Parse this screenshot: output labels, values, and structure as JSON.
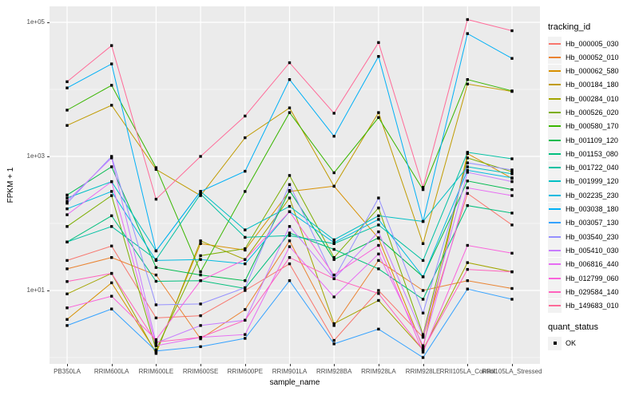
{
  "figure": {
    "x_axis_title": "sample_name",
    "y_axis_title": "FPKM + 1",
    "y_tick_labels": [
      "1e+05",
      "1e+03",
      "1e+01"
    ],
    "legend_title": "tracking_id",
    "quant_legend_title": "quant_status",
    "quant_items": [
      "OK"
    ]
  },
  "colors": {
    "panel_background": "#EBEBEB",
    "grid_major": "#FFFFFF",
    "grid_minor": "#FFFFFF",
    "point": "#000000",
    "axis_text": "#4D4D4D",
    "legend_key_background": "#F2F2F2"
  },
  "chart_data": {
    "type": "line",
    "title": "",
    "xlabel": "sample_name",
    "ylabel": "FPKM + 1",
    "y_scale": "log10",
    "ylim": [
      0.8,
      150000
    ],
    "y_major_ticks": [
      100000,
      1000,
      10
    ],
    "y_minor_ticks": [
      10000,
      100,
      1
    ],
    "grid": true,
    "legend_position": "right",
    "point_shape": "filled-square",
    "quant_status_all": "OK",
    "categories": [
      "PB350LA",
      "RRIM600LA",
      "RRIM600LE",
      "RRIM600SE",
      "RRIM600PE",
      "RRIM901LA",
      "RRIM928BA",
      "RRIM928LA",
      "RRIM928LE",
      "RRII105LA_Control",
      "RRII105LA_Stressed"
    ],
    "series": [
      {
        "name": "Hb_000005_030",
        "color": "#F8766D",
        "values": [
          28,
          46,
          3.9,
          4.2,
          10,
          25,
          1.8,
          10,
          2.0,
          280,
          95
        ]
      },
      {
        "name": "Hb_000052_010",
        "color": "#EA8331",
        "values": [
          21,
          31,
          17,
          1.9,
          5.2,
          55,
          3.0,
          28,
          10,
          14,
          10.7
        ]
      },
      {
        "name": "Hb_000062_580",
        "color": "#D89000",
        "values": [
          3.7,
          13,
          1.2,
          50,
          40,
          300,
          360,
          60,
          1.4,
          1100,
          470
        ]
      },
      {
        "name": "Hb_000184_180",
        "color": "#C09B00",
        "values": [
          2900,
          5800,
          640,
          260,
          1900,
          5300,
          358,
          4500,
          50,
          12000,
          9300
        ]
      },
      {
        "name": "Hb_000284_010",
        "color": "#A3A500",
        "values": [
          8.9,
          18,
          1.15,
          55,
          29,
          240,
          3.2,
          7.1,
          1.3,
          26,
          19
        ]
      },
      {
        "name": "Hb_000526_020",
        "color": "#7CAE00",
        "values": [
          90,
          260,
          1.3,
          33,
          42,
          520,
          31,
          170,
          2.2,
          950,
          590
        ]
      },
      {
        "name": "Hb_000580_170",
        "color": "#39B600",
        "values": [
          4900,
          11500,
          680,
          19,
          300,
          4500,
          570,
          3800,
          320,
          14000,
          9500
        ]
      },
      {
        "name": "Hb_001109_120",
        "color": "#00BB4E",
        "values": [
          265,
          700,
          22,
          17,
          14,
          310,
          29,
          61,
          16,
          430,
          320
        ]
      },
      {
        "name": "Hb_001153_080",
        "color": "#00BF7D",
        "values": [
          53,
          130,
          13.7,
          14,
          10.7,
          72,
          41,
          21,
          7.4,
          185,
          143
        ]
      },
      {
        "name": "Hb_001722_040",
        "color": "#00C1A3",
        "values": [
          53,
          90,
          29,
          275,
          62,
          66,
          50,
          95,
          28,
          1150,
          920
        ]
      },
      {
        "name": "Hb_001999_120",
        "color": "#00BFC4",
        "values": [
          240,
          420,
          39,
          300,
          80,
          180,
          57,
          130,
          107,
          700,
          550
        ]
      },
      {
        "name": "Hb_002235_230",
        "color": "#00BAE0",
        "values": [
          165,
          300,
          28,
          29,
          25,
          150,
          52,
          115,
          16,
          620,
          480
        ]
      },
      {
        "name": "Hb_003038_180",
        "color": "#00B0F6",
        "values": [
          10500,
          24000,
          39,
          300,
          600,
          14000,
          2000,
          31000,
          107,
          68000,
          29000
        ]
      },
      {
        "name": "Hb_003057_130",
        "color": "#35A2FF",
        "values": [
          3.0,
          5.3,
          1.25,
          1.45,
          1.93,
          14,
          1.6,
          2.65,
          1.0,
          10.5,
          7.4
        ]
      },
      {
        "name": "Hb_003540_230",
        "color": "#9590FF",
        "values": [
          200,
          1000,
          6.1,
          6.3,
          11,
          380,
          15,
          240,
          4.6,
          800,
          630
        ]
      },
      {
        "name": "Hb_005410_030",
        "color": "#C77CFF",
        "values": [
          215,
          950,
          1.65,
          3.0,
          3.6,
          90,
          15,
          75,
          2.1,
          580,
          420
        ]
      },
      {
        "name": "Hb_006816_440",
        "color": "#E76BF3",
        "values": [
          135,
          420,
          1.5,
          2.0,
          2.2,
          45,
          8,
          35,
          1.5,
          340,
          260
        ]
      },
      {
        "name": "Hb_012799_060",
        "color": "#FA62DB",
        "values": [
          5.5,
          8.2,
          1.85,
          14,
          29,
          150,
          17,
          47,
          1.2,
          47,
          36
        ]
      },
      {
        "name": "Hb_029584_140",
        "color": "#FF62BC",
        "values": [
          13.6,
          18,
          1.7,
          2.0,
          3.6,
          31,
          15,
          9,
          1.3,
          20.6,
          19
        ]
      },
      {
        "name": "Hb_149683_010",
        "color": "#FF6A98",
        "values": [
          13000,
          45000,
          230,
          1000,
          4000,
          25000,
          4400,
          50000,
          345,
          110000,
          75000
        ]
      }
    ]
  }
}
